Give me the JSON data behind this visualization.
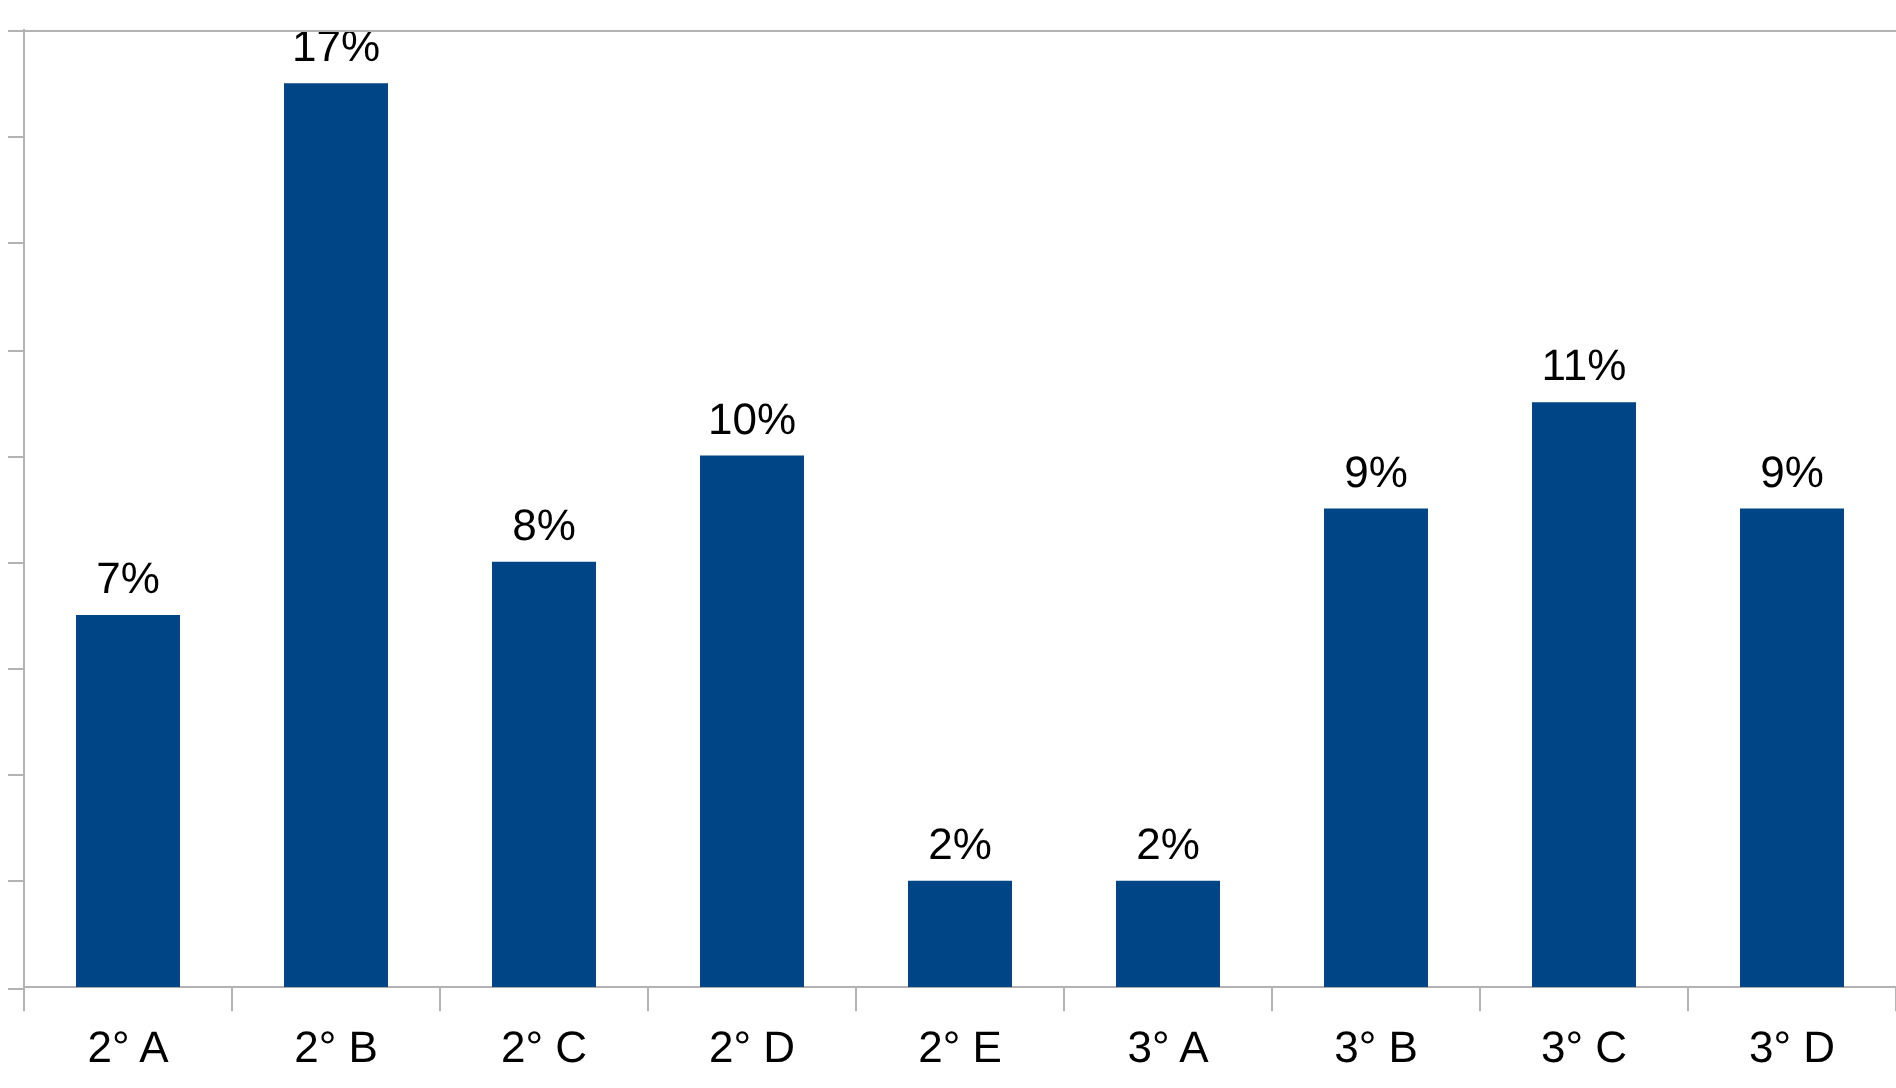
{
  "chart_data": {
    "type": "bar",
    "categories": [
      "2° A",
      "2° B",
      "2° C",
      "2° D",
      "2° E",
      "3° A",
      "3° B",
      "3° C",
      "3° D"
    ],
    "values": [
      7,
      17,
      8,
      10,
      2,
      2,
      9,
      11,
      9
    ],
    "value_labels": [
      "7%",
      "17%",
      "8%",
      "10%",
      "2%",
      "2%",
      "9%",
      "11%",
      "9%"
    ],
    "color": "#004586",
    "ylim": [
      0,
      18
    ],
    "yticks": [
      {
        "value": 0,
        "label": null
      },
      {
        "value": 2,
        "label": null
      },
      {
        "value": 4,
        "label": null
      },
      {
        "value": 6,
        "label": null
      },
      {
        "value": 8,
        "label": null
      },
      {
        "value": 10,
        "label": null
      },
      {
        "value": 12,
        "label": null
      },
      {
        "value": 14,
        "label": null
      },
      {
        "value": 16,
        "label": null
      },
      {
        "value": 18,
        "label": null
      }
    ],
    "tick_labels": "x"
  }
}
